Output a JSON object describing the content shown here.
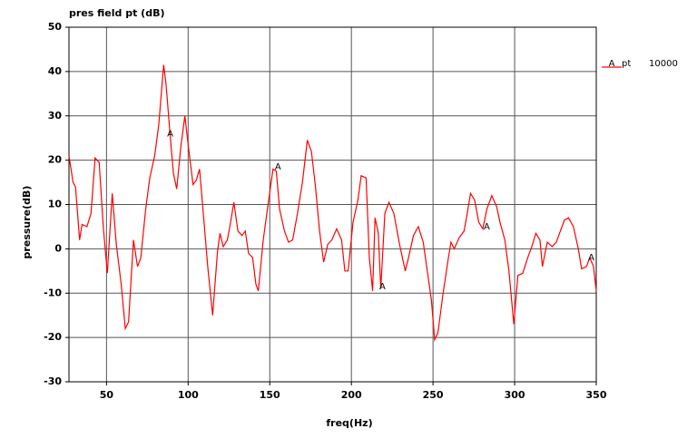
{
  "chart_data": {
    "type": "line",
    "title": "pres field pt (dB)",
    "xlabel": "freq(Hz)",
    "ylabel": "pressure(dB)",
    "x": [
      27,
      29.5,
      31,
      33.5,
      35,
      38,
      40.5,
      43,
      45.5,
      48,
      50.5,
      53.5,
      56,
      59,
      61.5,
      63.5,
      66.5,
      69,
      71,
      74,
      76.5,
      79.5,
      82,
      85,
      86.5,
      89,
      91,
      93,
      95.5,
      98,
      100,
      103,
      105,
      107,
      109.5,
      112,
      115,
      118,
      119.5,
      121.5,
      124,
      126,
      128,
      130.5,
      133,
      135,
      137,
      139.5,
      141.5,
      143,
      146,
      149.5,
      152,
      154,
      156,
      159,
      161.5,
      164,
      166.5,
      170,
      173,
      175.5,
      178,
      180.5,
      183,
      185.5,
      188,
      191,
      194,
      196,
      198,
      201,
      204,
      206,
      209,
      211,
      213,
      214.5,
      216.5,
      218,
      220.5,
      223,
      226,
      229.5,
      233,
      235,
      238,
      241,
      244,
      246.5,
      249,
      251,
      253,
      256,
      259,
      261,
      263,
      266,
      269,
      270.5,
      273,
      275.5,
      278,
      280.5,
      283,
      286,
      289,
      291,
      294,
      296.5,
      299.5,
      302,
      305,
      308,
      310.5,
      313,
      315.5,
      317,
      320,
      323,
      325.5,
      328,
      330.5,
      333,
      336,
      339,
      341,
      344,
      346,
      348.3,
      350
    ],
    "series": [
      {
        "name": "pt",
        "symbol": "A",
        "legend_value": "10000",
        "color": "#ff0000",
        "values": [
          21,
          15,
          14,
          2,
          5.5,
          5,
          8,
          20.5,
          19.5,
          5,
          -5.5,
          12.5,
          1,
          -8,
          -18,
          -16.5,
          2,
          -4,
          -2,
          9,
          16,
          21,
          28,
          41.5,
          37,
          25.5,
          17,
          13.5,
          23,
          30,
          23.5,
          14.5,
          15.5,
          18,
          7,
          -4,
          -15,
          -0.5,
          3.5,
          0.5,
          2,
          6,
          10.5,
          4,
          3,
          4,
          -1,
          -2,
          -8,
          -9.5,
          2,
          11.5,
          18,
          17.5,
          9,
          4,
          1.5,
          2,
          7,
          15,
          24.5,
          22,
          14,
          4,
          -3,
          1,
          2,
          4.5,
          2,
          -5,
          -5,
          6,
          11,
          16.5,
          16,
          -2,
          -9.5,
          7,
          3.5,
          -9,
          8,
          10.5,
          8,
          1,
          -5,
          -2,
          3,
          5,
          1.5,
          -5,
          -11.5,
          -20.5,
          -19,
          -10.5,
          -3,
          1.5,
          0,
          2.5,
          4,
          7,
          12.5,
          11,
          6,
          4.5,
          9,
          12,
          9.5,
          6,
          2,
          -5,
          -17,
          -6,
          -5.5,
          -2,
          0.5,
          3.5,
          2,
          -4,
          1.5,
          0.5,
          1.5,
          4,
          6.5,
          7,
          5,
          0,
          -4.5,
          -4,
          -2,
          -4,
          -9.5
        ],
        "marker_x": [
          89,
          155,
          219,
          283,
          347
        ],
        "marker_values": [
          26,
          18.5,
          -8.5,
          5,
          -2
        ]
      }
    ],
    "xlim": [
      27,
      350
    ],
    "xticks": [
      50,
      100,
      150,
      200,
      250,
      300,
      350
    ],
    "ylim": [
      -30,
      50
    ],
    "yticks": [
      -30,
      -20,
      -10,
      0,
      10,
      20,
      30,
      40,
      50
    ],
    "grid": true
  }
}
